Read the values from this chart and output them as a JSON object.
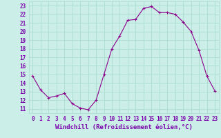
{
  "x": [
    0,
    1,
    2,
    3,
    4,
    5,
    6,
    7,
    8,
    9,
    10,
    11,
    12,
    13,
    14,
    15,
    16,
    17,
    18,
    19,
    20,
    21,
    22,
    23
  ],
  "y": [
    14.8,
    13.2,
    12.3,
    12.5,
    12.8,
    11.6,
    11.1,
    10.9,
    12.0,
    15.0,
    18.0,
    19.5,
    21.3,
    21.4,
    22.7,
    22.9,
    22.2,
    22.2,
    22.0,
    21.1,
    20.0,
    17.8,
    14.8,
    13.1
  ],
  "line_color": "#8B008B",
  "marker": "+",
  "marker_size": 3,
  "bg_color": "#cceee8",
  "grid_color": "#aaddcc",
  "xlabel": "Windchill (Refroidissement éolien,°C)",
  "xlabel_fontsize": 6.5,
  "tick_fontsize": 5.5,
  "ylim": [
    10.5,
    23.5
  ],
  "xlim": [
    -0.5,
    23.5
  ],
  "yticks": [
    11,
    12,
    13,
    14,
    15,
    16,
    17,
    18,
    19,
    20,
    21,
    22,
    23
  ],
  "xticks": [
    0,
    1,
    2,
    3,
    4,
    5,
    6,
    7,
    8,
    9,
    10,
    11,
    12,
    13,
    14,
    15,
    16,
    17,
    18,
    19,
    20,
    21,
    22,
    23
  ]
}
